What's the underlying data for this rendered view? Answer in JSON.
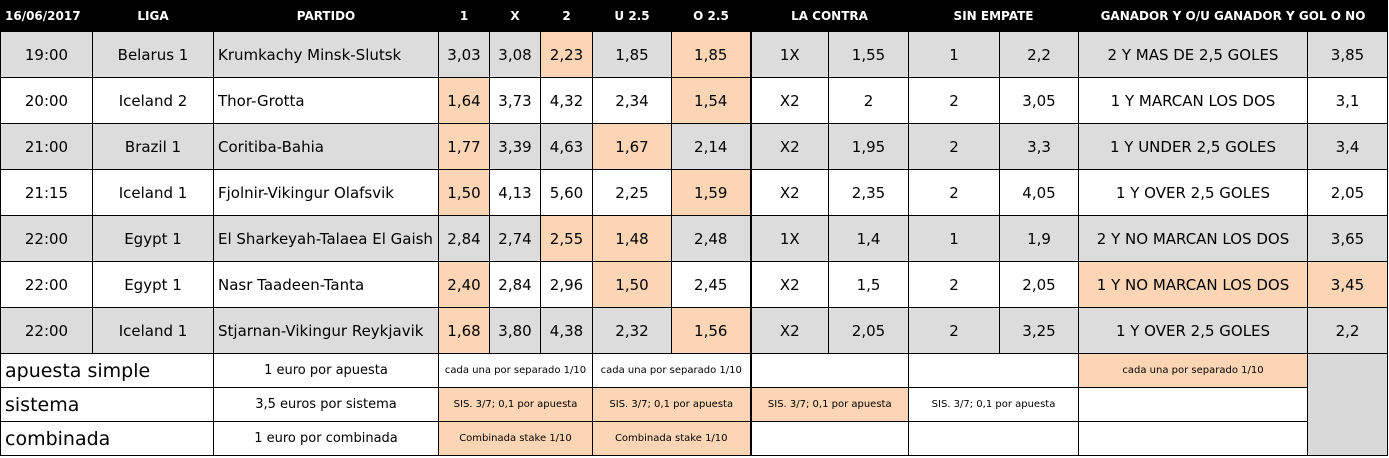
{
  "header": {
    "date": "16/06/2017",
    "liga": "LIGA",
    "partido": "PARTIDO",
    "c1": "1",
    "cx": "X",
    "c2": "2",
    "u25": "U 2.5",
    "o25": "O 2.5",
    "la_contra": "LA CONTRA",
    "sin_empate": "SIN EMPATE",
    "ganador_ou": "GANADOR Y O/U GANADOR Y GOL O NO"
  },
  "matches": [
    {
      "time": "19:00",
      "league": "Belarus 1",
      "match": "Krumkachy Minsk-Slutsk",
      "o1": "3,03",
      "ox": "3,08",
      "o2": "2,23",
      "u25": "1,85",
      "o25": "1,85",
      "contra": "1X",
      "contra_odd": "1,55",
      "sin": "1",
      "sin_odd": "2,2",
      "gan": "2 Y MAS DE 2,5 GOLES",
      "gan_odd": "3,85"
    },
    {
      "time": "20:00",
      "league": "Iceland 2",
      "match": "Thor-Grotta",
      "o1": "1,64",
      "ox": "3,73",
      "o2": "4,32",
      "u25": "2,34",
      "o25": "1,54",
      "contra": "X2",
      "contra_odd": "2",
      "sin": "2",
      "sin_odd": "3,05",
      "gan": "1 Y MARCAN LOS DOS",
      "gan_odd": "3,1"
    },
    {
      "time": "21:00",
      "league": "Brazil 1",
      "match": "Coritiba-Bahia",
      "o1": "1,77",
      "ox": "3,39",
      "o2": "4,63",
      "u25": "1,67",
      "o25": "2,14",
      "contra": "X2",
      "contra_odd": "1,95",
      "sin": "2",
      "sin_odd": "3,3",
      "gan": "1 Y UNDER 2,5 GOLES",
      "gan_odd": "3,4"
    },
    {
      "time": "21:15",
      "league": "Iceland 1",
      "match": "Fjolnir-Vikingur Olafsvik",
      "o1": "1,50",
      "ox": "4,13",
      "o2": "5,60",
      "u25": "2,25",
      "o25": "1,59",
      "contra": "X2",
      "contra_odd": "2,35",
      "sin": "2",
      "sin_odd": "4,05",
      "gan": "1 Y OVER 2,5 GOLES",
      "gan_odd": "2,05"
    },
    {
      "time": "22:00",
      "league": "Egypt 1",
      "match": "El Sharkeyah-Talaea El Gaish",
      "o1": "2,84",
      "ox": "2,74",
      "o2": "2,55",
      "u25": "1,48",
      "o25": "2,48",
      "contra": "1X",
      "contra_odd": "1,4",
      "sin": "1",
      "sin_odd": "1,9",
      "gan": "2 Y NO MARCAN LOS DOS",
      "gan_odd": "3,65"
    },
    {
      "time": "22:00",
      "league": "Egypt 1",
      "match": "Nasr Taadeen-Tanta",
      "o1": "2,40",
      "ox": "2,84",
      "o2": "2,96",
      "u25": "1,50",
      "o25": "2,45",
      "contra": "X2",
      "contra_odd": "1,5",
      "sin": "2",
      "sin_odd": "2,05",
      "gan": "1 Y NO MARCAN LOS DOS",
      "gan_odd": "3,45"
    },
    {
      "time": "22:00",
      "league": "Iceland 1",
      "match": "Stjarnan-Vikingur Reykjavik",
      "o1": "1,68",
      "ox": "3,80",
      "o2": "4,38",
      "u25": "2,32",
      "o25": "1,56",
      "contra": "X2",
      "contra_odd": "2,05",
      "sin": "2",
      "sin_odd": "3,25",
      "gan": "1 Y OVER 2,5 GOLES",
      "gan_odd": "2,2"
    }
  ],
  "footer": {
    "simple": {
      "label": "apuesta simple",
      "stake": "1 euro por apuesta",
      "c1x2": "cada una por separado 1/10",
      "cou": "cada una por separado 1/10",
      "cgan": "cada una por separado 1/10"
    },
    "sistema": {
      "label": "sistema",
      "stake": "3,5 euros por sistema",
      "c1x2": "SIS. 3/7; 0,1 por apuesta",
      "cou": "SIS. 3/7; 0,1 por apuesta",
      "ccontra": "SIS. 3/7; 0,1 por apuesta",
      "csin": "SIS. 3/7; 0,1 por apuesta"
    },
    "combinada": {
      "label": "combinada",
      "stake": "1 euro por combinada",
      "c1x2": "Combinada stake 1/10",
      "cou": "Combinada stake 1/10"
    }
  },
  "colors": {
    "highlight": "#fcd5b4",
    "row_gray": "#dcdcdc",
    "header_bg": "#000000"
  }
}
